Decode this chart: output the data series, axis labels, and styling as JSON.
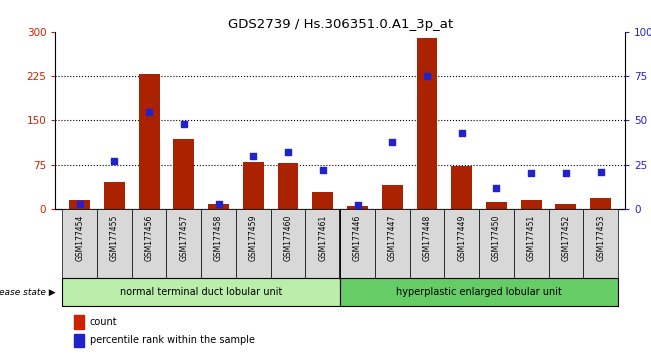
{
  "title": "GDS2739 / Hs.306351.0.A1_3p_at",
  "samples": [
    "GSM177454",
    "GSM177455",
    "GSM177456",
    "GSM177457",
    "GSM177458",
    "GSM177459",
    "GSM177460",
    "GSM177461",
    "GSM177446",
    "GSM177447",
    "GSM177448",
    "GSM177449",
    "GSM177450",
    "GSM177451",
    "GSM177452",
    "GSM177453"
  ],
  "counts": [
    15,
    45,
    228,
    118,
    8,
    80,
    78,
    28,
    5,
    40,
    290,
    72,
    12,
    15,
    8,
    18
  ],
  "percentiles": [
    3,
    27,
    55,
    48,
    3,
    30,
    32,
    22,
    2,
    38,
    75,
    43,
    12,
    20,
    20,
    21
  ],
  "groups": [
    {
      "label": "normal terminal duct lobular unit",
      "start": 0,
      "end": 8,
      "color": "#bbeeaa"
    },
    {
      "label": "hyperplastic enlarged lobular unit",
      "start": 8,
      "end": 16,
      "color": "#66cc66"
    }
  ],
  "bar_color": "#aa2200",
  "dot_color": "#2222cc",
  "ylim_left": [
    0,
    300
  ],
  "ylim_right": [
    0,
    100
  ],
  "yticks_left": [
    0,
    75,
    150,
    225,
    300
  ],
  "yticks_right": [
    0,
    25,
    50,
    75,
    100
  ],
  "ylabel_left_color": "#cc2200",
  "ylabel_right_color": "#2222cc",
  "legend_count_color": "#cc2200",
  "legend_dot_color": "#2222cc",
  "bg_color": "#d8d8d8"
}
